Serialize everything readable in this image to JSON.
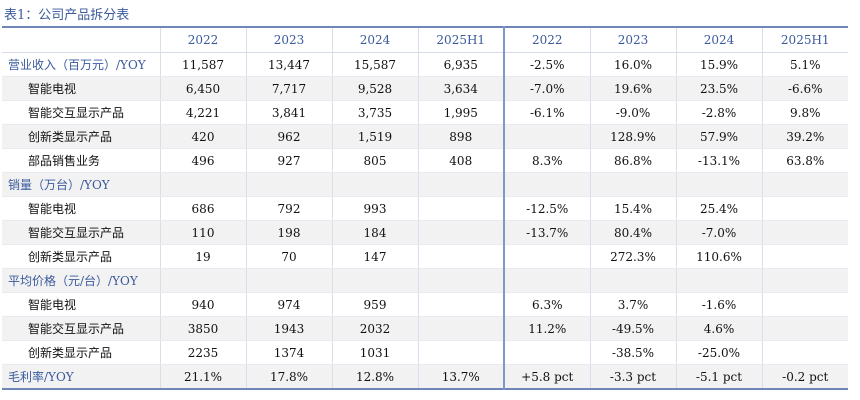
{
  "caption": "表1：公司产品拆分表",
  "columns": [
    "",
    "2022",
    "2023",
    "2024",
    "2025H1",
    "2022",
    "2023",
    "2024",
    "2025H1"
  ],
  "rows": [
    {
      "label": "营业收入（百万元）/YOY",
      "type": "head",
      "cells": [
        "11,587",
        "13,447",
        "15,587",
        "6,935",
        "-2.5%",
        "16.0%",
        "15.9%",
        "5.1%"
      ]
    },
    {
      "label": "智能电视",
      "type": "sub",
      "cells": [
        "6,450",
        "7,717",
        "9,528",
        "3,634",
        "-7.0%",
        "19.6%",
        "23.5%",
        "-6.6%"
      ]
    },
    {
      "label": "智能交互显示产品",
      "type": "sub",
      "cells": [
        "4,221",
        "3,841",
        "3,735",
        "1,995",
        "-6.1%",
        "-9.0%",
        "-2.8%",
        "9.8%"
      ]
    },
    {
      "label": "创新类显示产品",
      "type": "sub",
      "cells": [
        "420",
        "962",
        "1,519",
        "898",
        "",
        "128.9%",
        "57.9%",
        "39.2%"
      ]
    },
    {
      "label": "部品销售业务",
      "type": "sub",
      "cells": [
        "496",
        "927",
        "805",
        "408",
        "8.3%",
        "86.8%",
        "-13.1%",
        "63.8%"
      ]
    },
    {
      "label": "销量（万台）/YOY",
      "type": "head",
      "cells": [
        "",
        "",
        "",
        "",
        "",
        "",
        "",
        ""
      ]
    },
    {
      "label": "智能电视",
      "type": "sub",
      "cells": [
        "686",
        "792",
        "993",
        "",
        "-12.5%",
        "15.4%",
        "25.4%",
        ""
      ]
    },
    {
      "label": "智能交互显示产品",
      "type": "sub",
      "cells": [
        "110",
        "198",
        "184",
        "",
        "-13.7%",
        "80.4%",
        "-7.0%",
        ""
      ]
    },
    {
      "label": "创新类显示产品",
      "type": "sub",
      "cells": [
        "19",
        "70",
        "147",
        "",
        "",
        "272.3%",
        "110.6%",
        ""
      ]
    },
    {
      "label": "平均价格（元/台）/YOY",
      "type": "head",
      "cells": [
        "",
        "",
        "",
        "",
        "",
        "",
        "",
        ""
      ]
    },
    {
      "label": "智能电视",
      "type": "sub",
      "cells": [
        "940",
        "974",
        "959",
        "",
        "6.3%",
        "3.7%",
        "-1.6%",
        ""
      ]
    },
    {
      "label": "智能交互显示产品",
      "type": "sub",
      "cells": [
        "3850",
        "1943",
        "2032",
        "",
        "11.2%",
        "-49.5%",
        "4.6%",
        ""
      ]
    },
    {
      "label": "创新类显示产品",
      "type": "sub",
      "cells": [
        "2235",
        "1374",
        "1031",
        "",
        "",
        "-38.5%",
        "-25.0%",
        ""
      ]
    },
    {
      "label": "毛利率/YOY",
      "type": "head",
      "cells": [
        "21.1%",
        "17.8%",
        "12.8%",
        "13.7%",
        "+5.8 pct",
        "-3.3 pct",
        "-5.1 pct",
        "-0.2 pct"
      ]
    }
  ]
}
